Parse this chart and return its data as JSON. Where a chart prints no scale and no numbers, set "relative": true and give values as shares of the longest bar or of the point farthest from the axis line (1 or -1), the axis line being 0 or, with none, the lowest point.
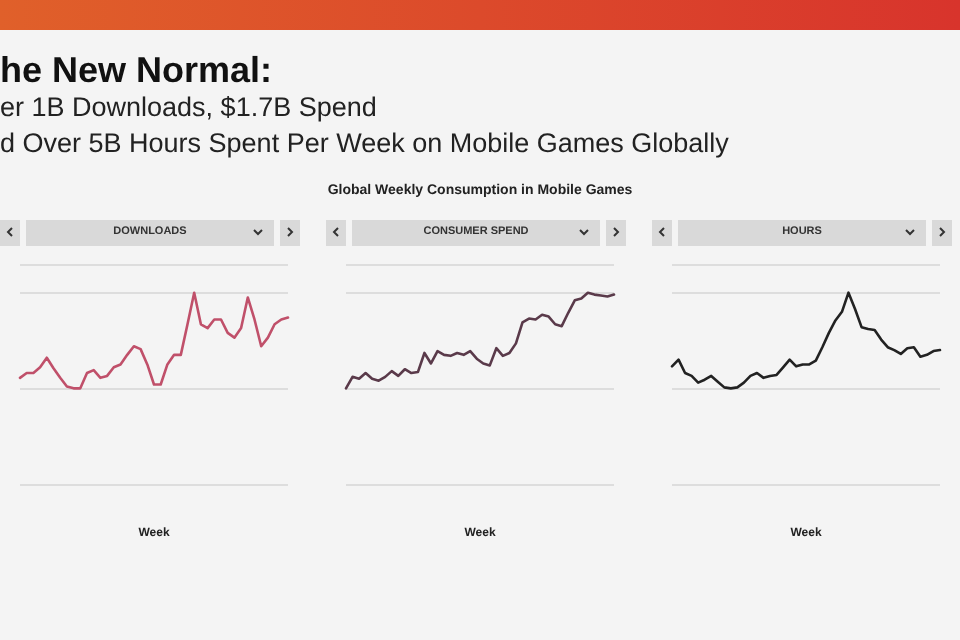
{
  "chart_data": [
    {
      "type": "other",
      "title": "he New Normal:",
      "annotations": [
        "er 1B Downloads, $1.7B Spend",
        "d Over 5B Hours Spent Per Week on Mobile Games Globally",
        "Global Weekly Consumption in Mobile Games"
      ]
    },
    {
      "type": "line",
      "title": "DOWNLOADS",
      "xlabel": "Week",
      "relative": true,
      "grid": "y",
      "categories": [
        null,
        null,
        null,
        null,
        null,
        null,
        null,
        null,
        null,
        null,
        null,
        null,
        null,
        null,
        null,
        null,
        null,
        null,
        null,
        null,
        null,
        null,
        null,
        null,
        null,
        null,
        null,
        null,
        null,
        null,
        null,
        null,
        null,
        null,
        null,
        null,
        null,
        null,
        null,
        null,
        null
      ],
      "series": [
        {
          "color": "#c0506a",
          "values": [
            0.11,
            0.16,
            0.16,
            0.22,
            0.32,
            0.21,
            0.11,
            0.02,
            0,
            0,
            0.16,
            0.19,
            0.11,
            0.13,
            0.22,
            0.25,
            0.35,
            0.44,
            0.41,
            0.25,
            0.04,
            0.04,
            0.25,
            0.35,
            0.35,
            0.67,
            1,
            0.67,
            0.63,
            0.72,
            0.72,
            0.58,
            0.53,
            0.63,
            0.95,
            0.72,
            0.44,
            0.53,
            0.67,
            0.72,
            0.74
          ]
        }
      ]
    },
    {
      "type": "line",
      "title": "CONSUMER SPEND",
      "xlabel": "Week",
      "relative": true,
      "grid": "y",
      "categories": [
        null,
        null,
        null,
        null,
        null,
        null,
        null,
        null,
        null,
        null,
        null,
        null,
        null,
        null,
        null,
        null,
        null,
        null,
        null,
        null,
        null,
        null,
        null,
        null,
        null,
        null,
        null,
        null,
        null,
        null,
        null,
        null,
        null,
        null,
        null,
        null,
        null,
        null,
        null,
        null,
        null,
        null
      ],
      "series": [
        {
          "color": "#5a3a4a",
          "values": [
            0,
            0.12,
            0.1,
            0.16,
            0.1,
            0.08,
            0.12,
            0.18,
            0.13,
            0.2,
            0.16,
            0.17,
            0.37,
            0.26,
            0.39,
            0.35,
            0.34,
            0.37,
            0.35,
            0.39,
            0.31,
            0.26,
            0.24,
            0.42,
            0.34,
            0.37,
            0.47,
            0.69,
            0.73,
            0.72,
            0.77,
            0.75,
            0.67,
            0.65,
            0.79,
            0.92,
            0.94,
            1,
            0.98,
            0.97,
            0.96,
            0.98
          ]
        }
      ]
    },
    {
      "type": "line",
      "title": "HOURS",
      "xlabel": "Week",
      "relative": true,
      "grid": "y",
      "categories": [
        null,
        null,
        null,
        null,
        null,
        null,
        null,
        null,
        null,
        null,
        null,
        null,
        null,
        null,
        null,
        null,
        null,
        null,
        null,
        null,
        null,
        null,
        null,
        null,
        null,
        null,
        null,
        null,
        null,
        null,
        null,
        null,
        null,
        null,
        null,
        null,
        null,
        null,
        null,
        null,
        null,
        null
      ],
      "series": [
        {
          "color": "#222222",
          "values": [
            0.23,
            0.3,
            0.16,
            0.13,
            0.06,
            0.09,
            0.13,
            0.07,
            0.01,
            0,
            0.01,
            0.06,
            0.13,
            0.16,
            0.11,
            0.13,
            0.14,
            0.22,
            0.3,
            0.23,
            0.25,
            0.25,
            0.29,
            0.43,
            0.58,
            0.71,
            0.8,
            1,
            0.83,
            0.64,
            0.62,
            0.61,
            0.51,
            0.43,
            0.4,
            0.36,
            0.42,
            0.43,
            0.33,
            0.35,
            0.39,
            0.4
          ]
        }
      ]
    }
  ]
}
